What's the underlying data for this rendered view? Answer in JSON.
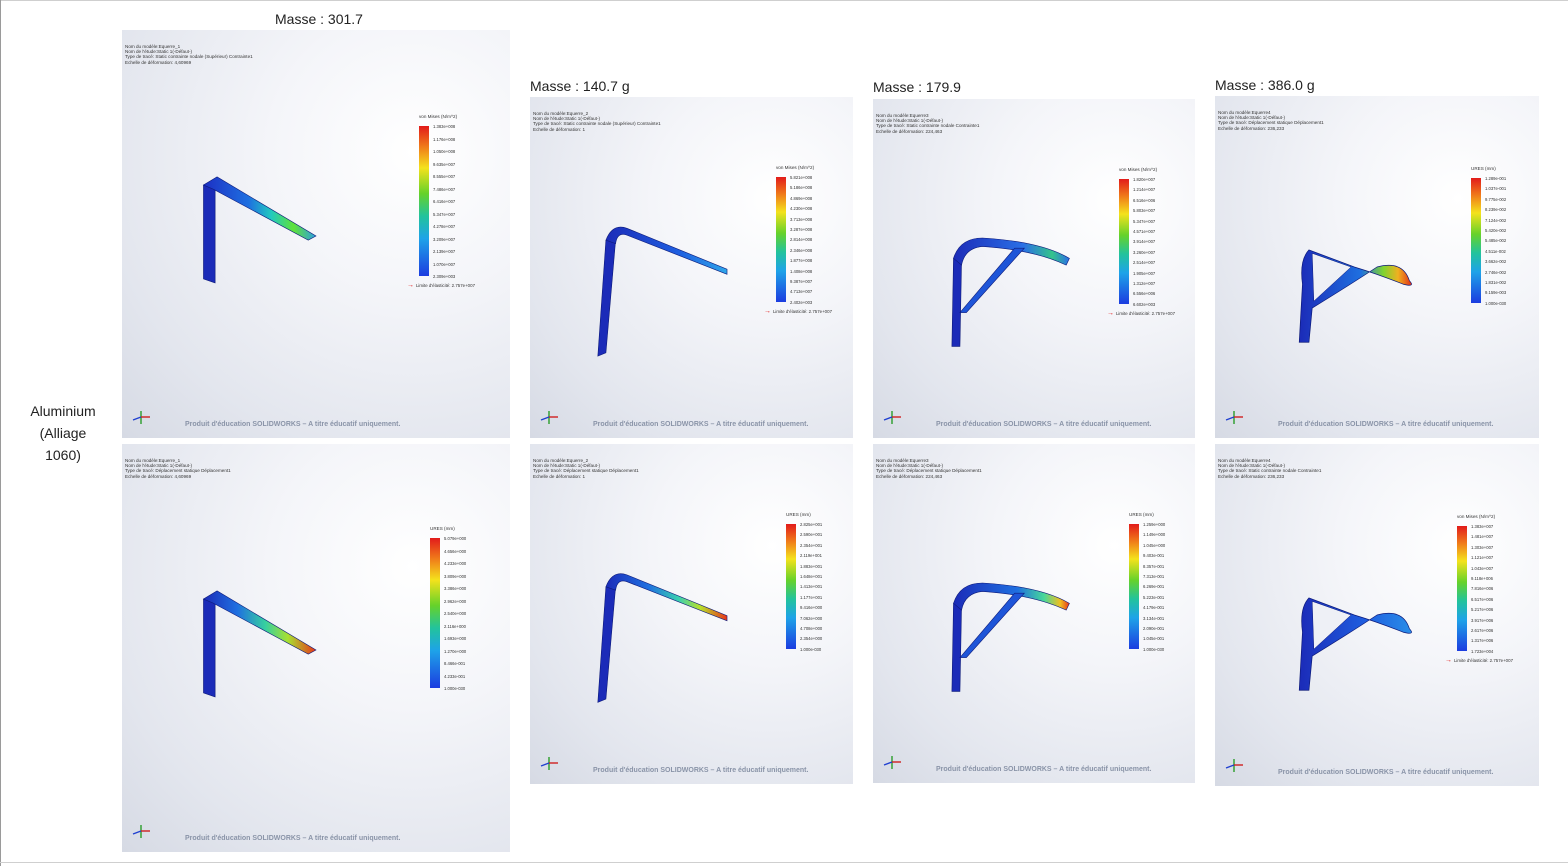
{
  "row": {
    "label_line1": "Aluminium",
    "label_line2": "(Alliage",
    "label_line3": "1060)"
  },
  "masses": [
    "Masse : 301.7",
    "Masse : 140.7 g",
    "Masse : 179.9",
    "Masse : 386.0 g"
  ],
  "watermark": "Produit d'éducation SOLIDWORKS – A titre éducatif uniquement.",
  "panels": [
    {
      "meta": [
        "Nom du modèle:Equerre_1",
        "Nom de l'étude:Static 1(-Défaut-)",
        "Type de tracé: Static contrainte nodale (Supérieur) Contrainte1",
        "Echelle de déformation: 4,60969"
      ],
      "legend_title": "von Mises (N/m^2)",
      "ticks": [
        "1.383e+008",
        "1.176e+008",
        "1.050e+008",
        "9.635e+007",
        "8.555e+007",
        "7.486e+007",
        "6.416e+007",
        "5.347e+007",
        "4.278e+007",
        "3.209e+007",
        "2.139e+007",
        "1.070e+007",
        "2.309e+003"
      ],
      "limit": "Limite d'élasticité: 2.757e+007"
    },
    {
      "meta": [
        "Nom du modèle:Equerre_2",
        "Nom de l'étude:Static 1(-Défaut-)",
        "Type de tracé: Static contrainte nodale (Supérieur) Contrainte1",
        "Echelle de déformation: 1"
      ],
      "legend_title": "von Mises (N/m^2)",
      "ticks": [
        "5.821e+008",
        "5.186e+008",
        "4.869e+008",
        "4.230e+008",
        "3.713e+008",
        "3.287e+008",
        "2.814e+008",
        "2.346e+008",
        "1.877e+008",
        "1.408e+008",
        "9.387e+007",
        "4.713e+007",
        "2.402e+003"
      ],
      "limit": "Limite d'élasticité: 2.757e+007"
    },
    {
      "meta": [
        "Nom du modèle:Equerre3",
        "Nom de l'étude:Static 1(-Défaut-)",
        "Type de tracé: Static contrainte nodale Contrainte1",
        "Echelle de déformation: 224,463"
      ],
      "legend_title": "von Mises (N/m^2)",
      "ticks": [
        "1.820e+007",
        "1.214e+007",
        "6.516e+006",
        "5.803e+007",
        "5.347e+007",
        "4.571e+007",
        "3.914e+007",
        "3.260e+007",
        "2.514e+007",
        "1.905e+007",
        "1.312e+007",
        "6.556e+006",
        "6.602e+003"
      ],
      "limit": "Limite d'élasticité: 2.757e+007"
    },
    {
      "meta": [
        "Nom du modèle:Equerre4",
        "Nom de l'étude:Static 1(-Défaut-)",
        "Type de tracé: Déplacement statique Déplacement1",
        "Echelle de déformation: 236,233"
      ],
      "legend_title": "URES (mm)",
      "ticks": [
        "1.289e-001",
        "1.037e-001",
        "9.775e-002",
        "8.239e-002",
        "7.124e-002",
        "5.420e-002",
        "5.485e-002",
        "4.511e-002",
        "3.662e-002",
        "2.746e-002",
        "1.831e-002",
        "9.159e-003",
        "1.000e-030"
      ],
      "limit": ""
    },
    {
      "meta": [
        "Nom du modèle:Equerre_1",
        "Nom de l'étude:Static 1(-Défaut-)",
        "Type de tracé: Déplacement statique Déplacement1",
        "Echelle de déformation: 4,60969"
      ],
      "legend_title": "URES (mm)",
      "ticks": [
        "5.079e+000",
        "4.656e+000",
        "4.233e+000",
        "3.809e+000",
        "3.386e+000",
        "2.962e+000",
        "2.540e+000",
        "2.116e+000",
        "1.693e+000",
        "1.270e+000",
        "8.466e-001",
        "4.233e-001",
        "1.000e-030"
      ],
      "limit": ""
    },
    {
      "meta": [
        "Nom du modèle:Equerre_2",
        "Nom de l'étude:Static 1(-Défaut-)",
        "Type de tracé: Déplacement statique Déplacement1",
        "Echelle de déformation: 1"
      ],
      "legend_title": "URES (mm)",
      "ticks": [
        "2.825e+001",
        "2.590e+001",
        "2.354e+001",
        "2.119e+001",
        "1.883e+001",
        "1.648e+001",
        "1.413e+001",
        "1.177e+001",
        "9.416e+000",
        "7.062e+000",
        "4.708e+000",
        "2.354e+000",
        "1.000e-030"
      ],
      "limit": ""
    },
    {
      "meta": [
        "Nom du modèle:Equerre3",
        "Nom de l'étude:Static 1(-Défaut-)",
        "Type de tracé: Déplacement statique Déplacement1",
        "Echelle de déformation: 224,463"
      ],
      "legend_title": "URES (mm)",
      "ticks": [
        "1.259e+000",
        "1.149e+000",
        "1.045e+000",
        "9.403e-001",
        "8.357e-001",
        "7.313e-001",
        "6.269e-001",
        "5.223e-001",
        "4.179e-001",
        "3.134e-001",
        "2.090e-001",
        "1.045e-001",
        "1.000e-030"
      ],
      "limit": ""
    },
    {
      "meta": [
        "Nom du modèle:Equerre4",
        "Nom de l'étude:Static 1(-Défaut-)",
        "Type de tracé: Static contrainte nodale Contrainte1",
        "Echelle de déformation: 236,233"
      ],
      "legend_title": "von Mises (N/m^2)",
      "ticks": [
        "1.383e+007",
        "1.481e+007",
        "1.303e+007",
        "1.121e+007",
        "1.043e+007",
        "9.118e+006",
        "7.816e+006",
        "6.517e+006",
        "5.217e+006",
        "3.917e+006",
        "2.617e+006",
        "1.317e+006",
        "1.723e+004"
      ],
      "limit": "Limite d'élasticité: 2.757e+007"
    }
  ]
}
